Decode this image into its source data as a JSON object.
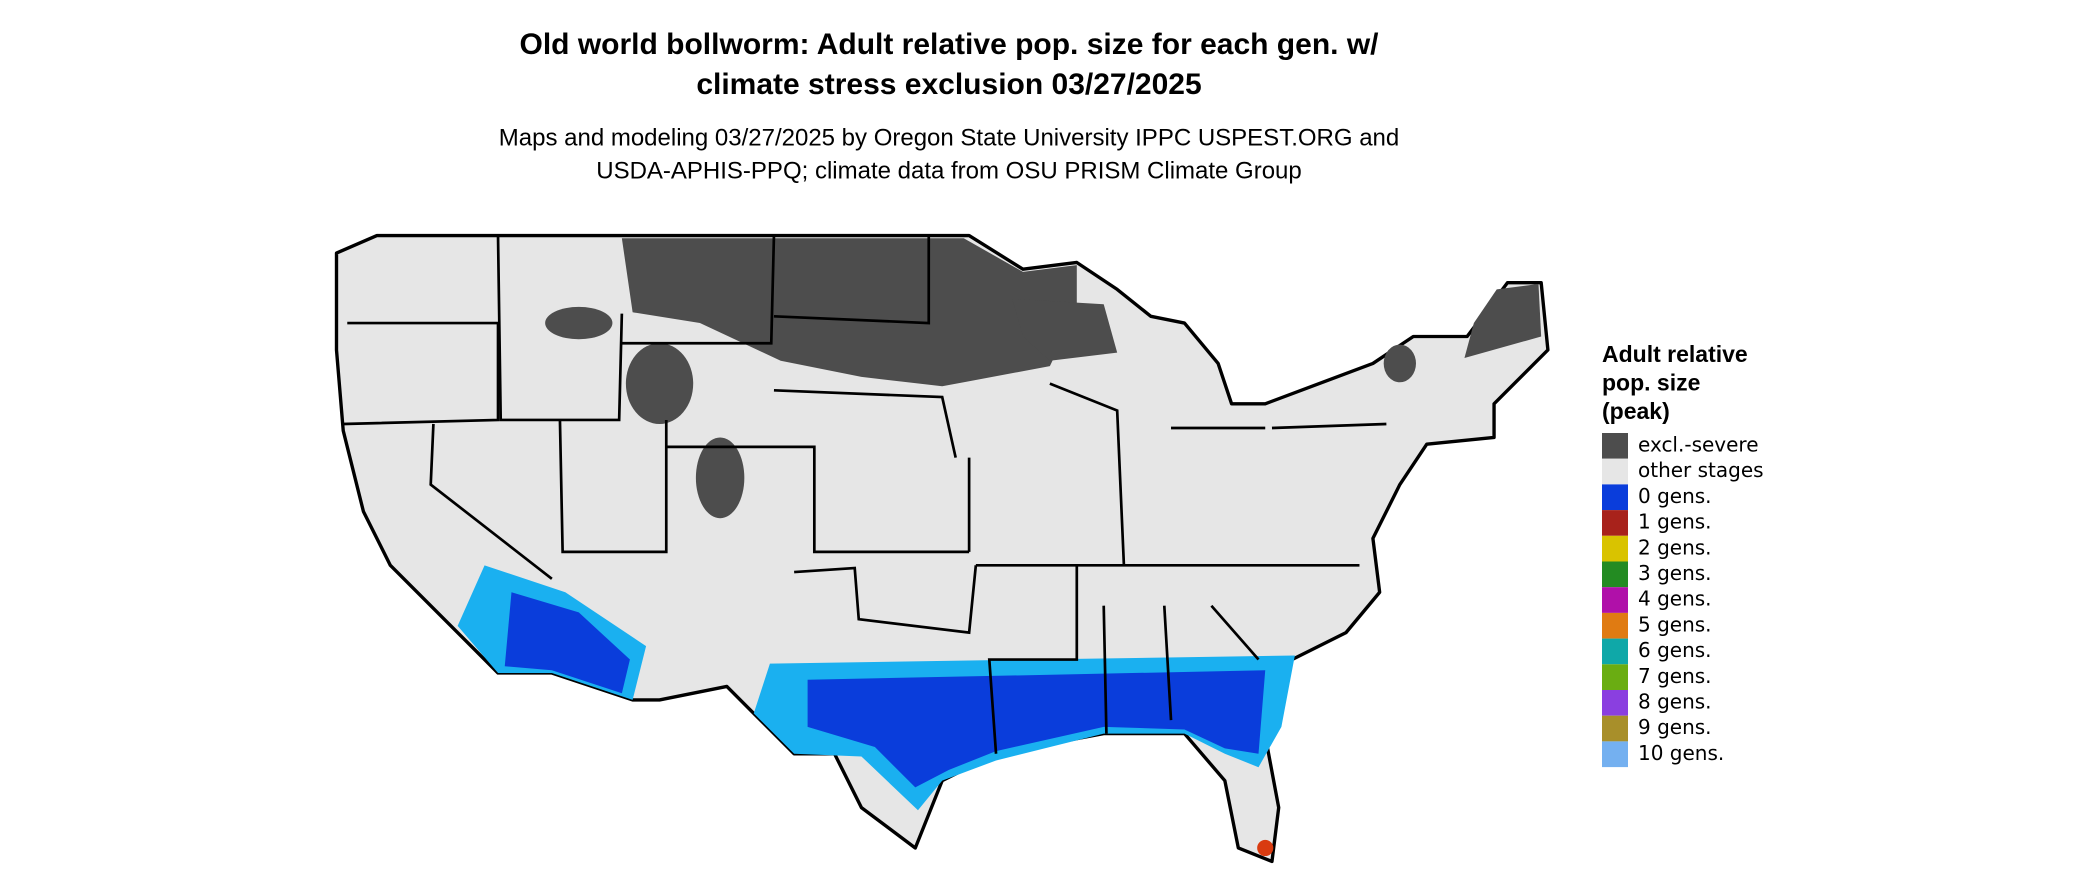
{
  "header": {
    "title_lines": [
      "Old world bollworm: Adult relative pop. size for each gen. w/",
      "climate stress exclusion 03/27/2025"
    ],
    "subtitle_lines": [
      "Maps and modeling 03/27/2025 by Oregon State University IPPC USPEST.ORG and",
      "USDA-APHIS-PPQ; climate data from OSU PRISM Climate Group"
    ]
  },
  "legend": {
    "title_lines": [
      "Adult relative",
      "pop. size",
      "(peak)"
    ],
    "items": [
      {
        "label": "excl.-severe",
        "color": "#4d4d4d"
      },
      {
        "label": "other stages",
        "color": "#e6e6e6"
      },
      {
        "label": "0 gens.",
        "color": "#0a3ddb"
      },
      {
        "label": "1 gens.",
        "color": "#a8221b"
      },
      {
        "label": "2 gens.",
        "color": "#d9c300"
      },
      {
        "label": "3 gens.",
        "color": "#238b22"
      },
      {
        "label": "4 gens.",
        "color": "#b010a9"
      },
      {
        "label": "5 gens.",
        "color": "#e07b12"
      },
      {
        "label": "6 gens.",
        "color": "#0fa8a8"
      },
      {
        "label": "7 gens.",
        "color": "#6aad12"
      },
      {
        "label": "8 gens.",
        "color": "#8a3fe0"
      },
      {
        "label": "9 gens.",
        "color": "#a88f2a"
      },
      {
        "label": "10 gens.",
        "color": "#74b0f0"
      }
    ]
  }
}
